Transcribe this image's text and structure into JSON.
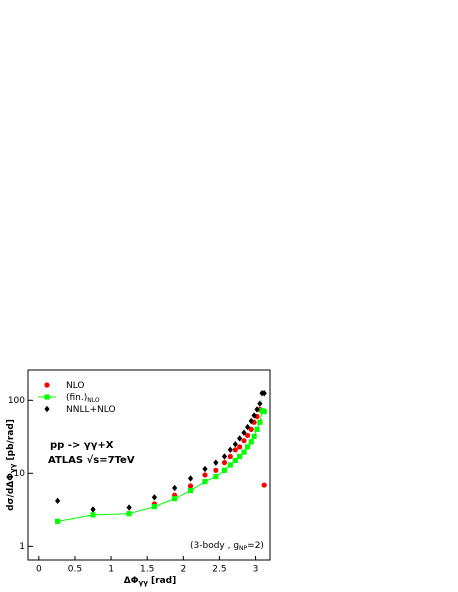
{
  "chart_data": {
    "type": "scatter",
    "log_y": true,
    "xlabel": [
      "ΔΦ",
      "γγ",
      " [rad]"
    ],
    "ylabel": [
      "dσ/dΔΦ",
      "γγ",
      " [pb/rad]"
    ],
    "annotations": [
      "pp -> γγ+X",
      "ATLAS √s=7TeV"
    ],
    "note": [
      "(3-body , g",
      "NP",
      "=2)"
    ],
    "xlim": [
      -0.15,
      3.2
    ],
    "ylim": [
      0.65,
      260
    ],
    "xticks": [
      0,
      0.5,
      1,
      1.5,
      2,
      2.5,
      3
    ],
    "yticks": [
      1,
      10,
      100
    ],
    "series": [
      {
        "name": "NLO",
        "color": "#ff0000",
        "marker": "circle",
        "x": [
          1.6,
          1.88,
          2.1,
          2.3,
          2.45,
          2.57,
          2.65,
          2.72,
          2.78,
          2.84,
          2.89,
          2.94,
          2.98,
          3.02,
          3.06,
          3.12
        ],
        "values": [
          3.8,
          5,
          6.7,
          9.5,
          11,
          14,
          17,
          21,
          23,
          28,
          33,
          40,
          50,
          60,
          75,
          6.9
        ]
      },
      {
        "name": "(fin.)",
        "name_sub": "NLO",
        "color": "#00ff00",
        "marker": "square",
        "line": true,
        "x": [
          0.26,
          0.75,
          1.25,
          1.6,
          1.88,
          2.1,
          2.3,
          2.45,
          2.57,
          2.65,
          2.72,
          2.78,
          2.84,
          2.89,
          2.94,
          2.98,
          3.02,
          3.06,
          3.09,
          3.12
        ],
        "values": [
          2.2,
          2.7,
          2.8,
          3.5,
          4.5,
          5.8,
          7.7,
          9,
          11,
          13,
          15,
          17,
          19.5,
          23,
          27,
          32,
          40,
          50,
          72,
          70
        ]
      },
      {
        "name": "NNLL+NLO",
        "color": "#000000",
        "marker": "diamond",
        "x": [
          0.26,
          0.75,
          1.25,
          1.6,
          1.88,
          2.1,
          2.3,
          2.45,
          2.57,
          2.65,
          2.72,
          2.78,
          2.84,
          2.89,
          2.94,
          2.98,
          3.02,
          3.06,
          3.09,
          3.12
        ],
        "values": [
          4.2,
          3.2,
          3.4,
          4.7,
          6.3,
          8.5,
          11.5,
          14,
          17,
          21,
          25,
          30,
          36,
          43,
          52,
          62,
          75,
          90,
          125,
          125
        ]
      }
    ]
  }
}
